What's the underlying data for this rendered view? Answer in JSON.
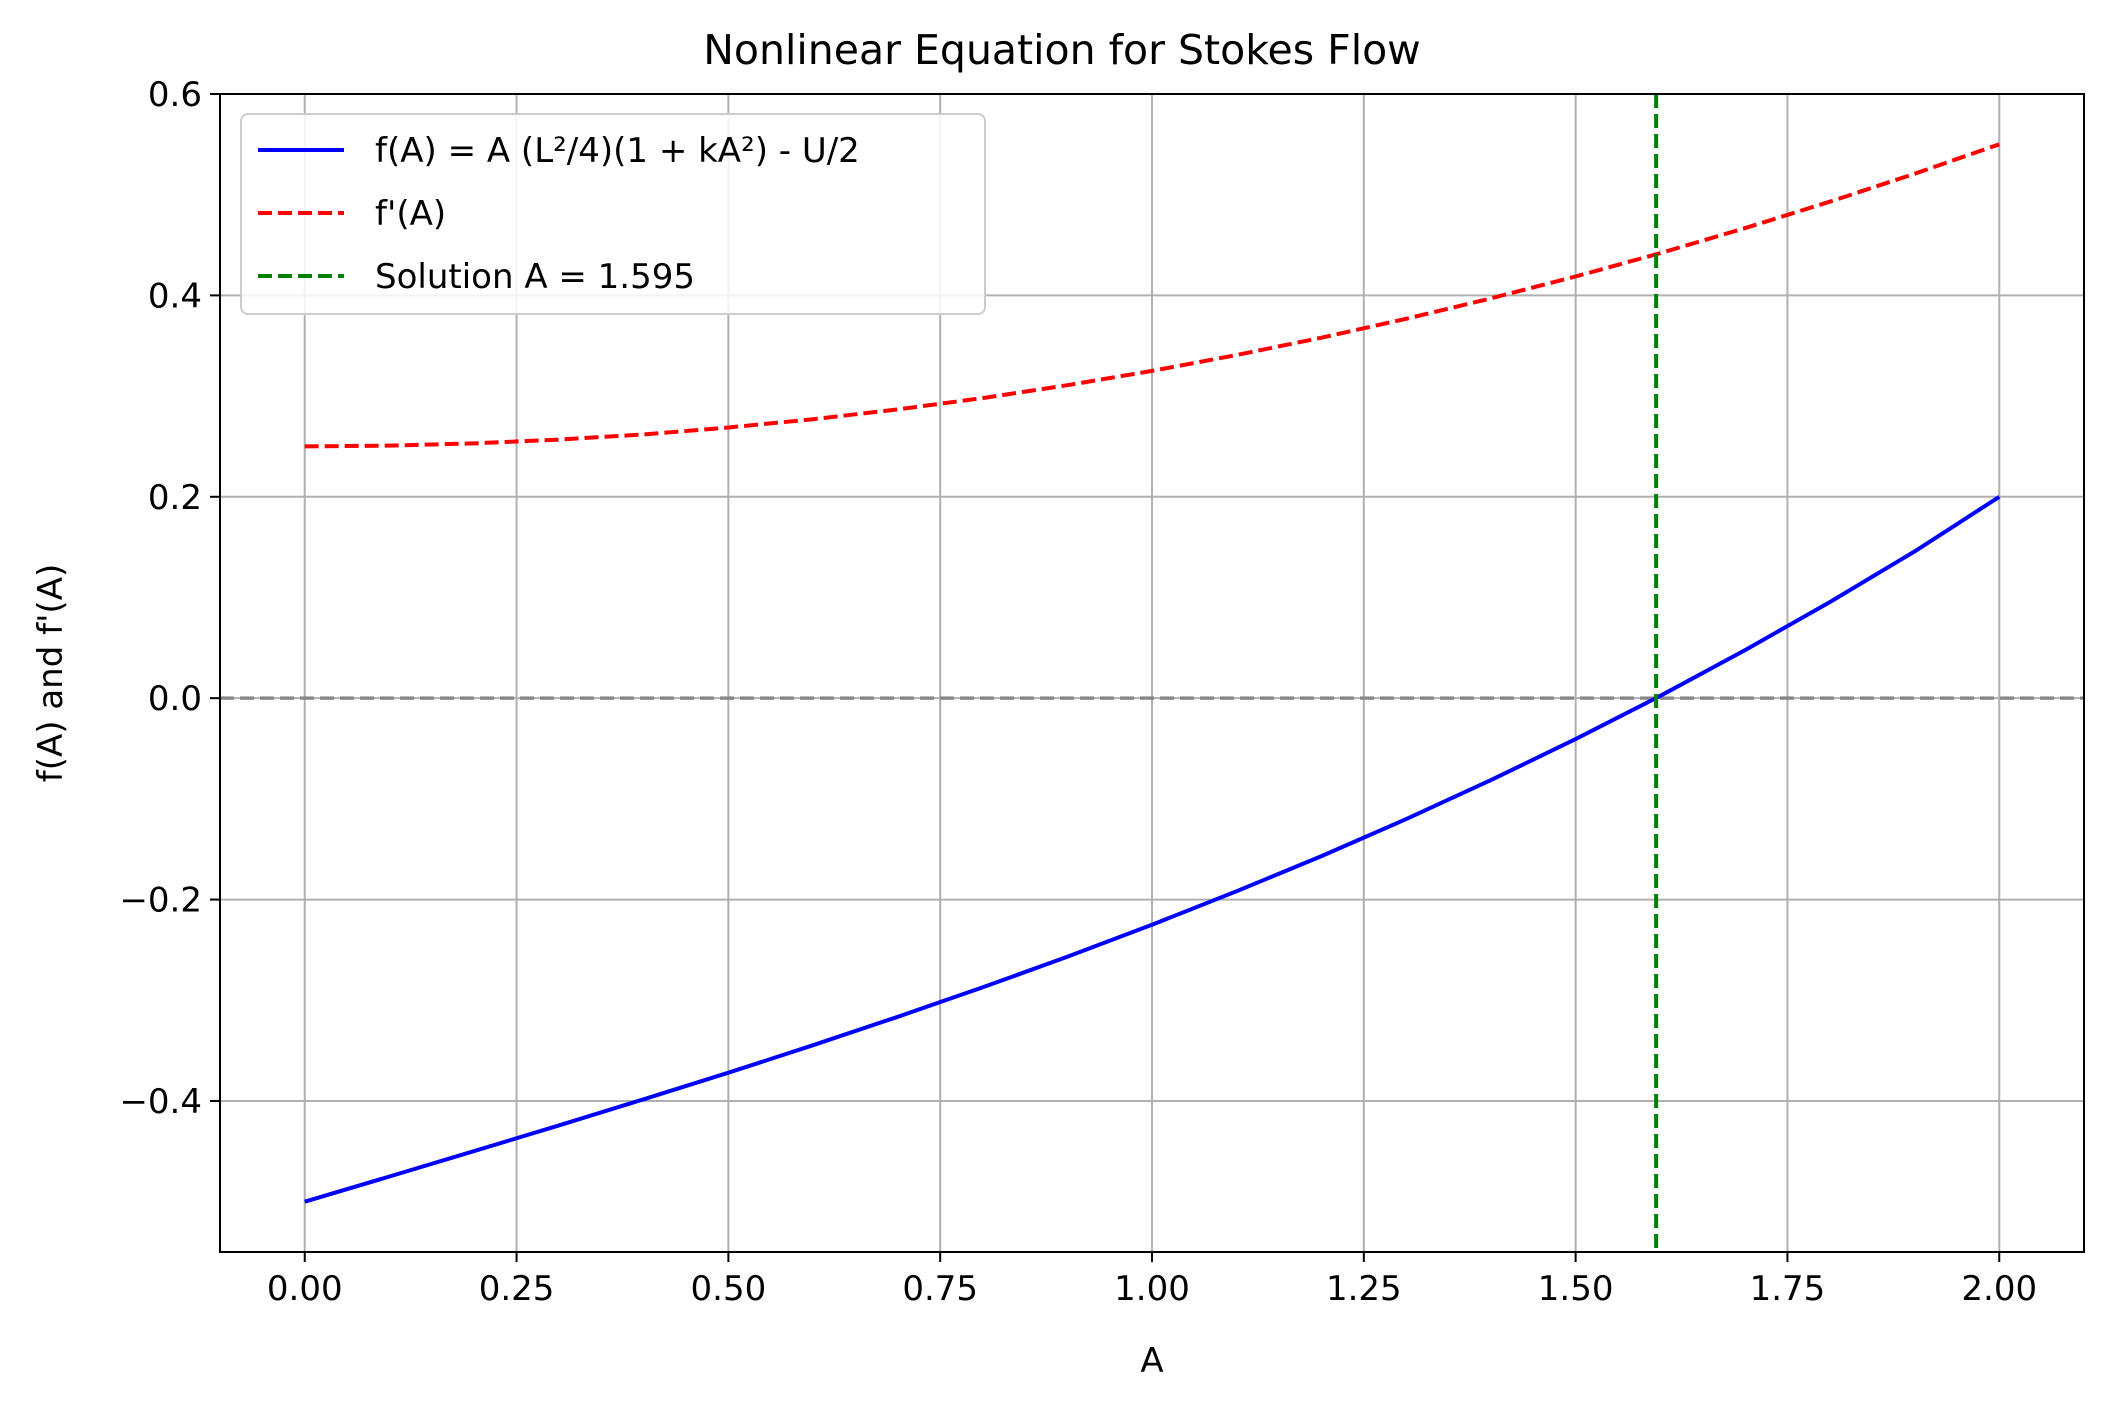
{
  "chart_data": {
    "type": "line",
    "title": "Nonlinear Equation for Stokes Flow",
    "xlabel": "A",
    "ylabel": "f(A) and f'(A)",
    "xlim": [
      -0.1,
      2.1
    ],
    "ylim": [
      -0.55,
      0.6
    ],
    "xticks": [
      0.0,
      0.25,
      0.5,
      0.75,
      1.0,
      1.25,
      1.5,
      1.75,
      2.0
    ],
    "xtick_labels": [
      "0.00",
      "0.25",
      "0.50",
      "0.75",
      "1.00",
      "1.25",
      "1.50",
      "1.75",
      "2.00"
    ],
    "yticks": [
      -0.4,
      -0.2,
      0.0,
      0.2,
      0.4,
      0.6
    ],
    "ytick_labels": [
      "−0.4",
      "−0.2",
      "0.0",
      "0.2",
      "0.4",
      "0.6"
    ],
    "grid": true,
    "legend_position": "upper-left",
    "series": [
      {
        "name": "f(A) = A (L²/4)(1 + kA²) - U/2",
        "color": "#0000ff",
        "style": "solid",
        "x": [
          0.0,
          0.1,
          0.2,
          0.3,
          0.4,
          0.5,
          0.6,
          0.7,
          0.8,
          0.9,
          1.0,
          1.1,
          1.2,
          1.3,
          1.4,
          1.5,
          1.6,
          1.7,
          1.8,
          1.9,
          2.0
        ],
        "y": [
          -0.5,
          -0.475,
          -0.4498,
          -0.4243,
          -0.3984,
          -0.3719,
          -0.3446,
          -0.3164,
          -0.2872,
          -0.2568,
          -0.225,
          -0.1917,
          -0.1568,
          -0.1201,
          -0.0814,
          -0.0406,
          0.0024,
          0.0477,
          0.0954,
          0.1457,
          0.2
        ]
      },
      {
        "name": "f'(A)",
        "color": "#ff0000",
        "style": "dashed",
        "x": [
          0.0,
          0.1,
          0.2,
          0.3,
          0.4,
          0.5,
          0.6,
          0.7,
          0.8,
          0.9,
          1.0,
          1.1,
          1.2,
          1.3,
          1.4,
          1.5,
          1.6,
          1.7,
          1.8,
          1.9,
          2.0
        ],
        "y": [
          0.25,
          0.2508,
          0.253,
          0.2568,
          0.262,
          0.2688,
          0.277,
          0.2868,
          0.298,
          0.3108,
          0.325,
          0.3408,
          0.358,
          0.3768,
          0.397,
          0.4188,
          0.442,
          0.4668,
          0.493,
          0.5208,
          0.55
        ]
      }
    ],
    "reference_lines": [
      {
        "name": "Solution A = 1.595",
        "orientation": "vertical",
        "value": 1.595,
        "color": "#008000",
        "style": "dashed",
        "in_legend": true
      },
      {
        "orientation": "horizontal",
        "value": 0.0,
        "color": "#808080",
        "style": "dashed",
        "in_legend": false
      }
    ]
  }
}
